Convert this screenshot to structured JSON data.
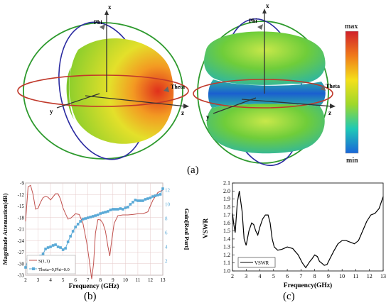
{
  "panel_labels": {
    "a": "(a)",
    "b": "(b)",
    "c": "(c)"
  },
  "pattern_axes": {
    "x": "x",
    "y": "y",
    "z": "z",
    "phi": "Phi",
    "theta": "Theta"
  },
  "colorbar": {
    "max": "max",
    "min": "min",
    "gradient": [
      "#d0202a",
      "#f07a1a",
      "#f4e01a",
      "#9ed82a",
      "#1ec9b6",
      "#1a66d8"
    ]
  },
  "chart_data": [
    {
      "type": "line",
      "xlabel": "Frequency (GHz)",
      "ylabel": "Magnitude Attenuation(dB)",
      "y2label": "Gain[Real Part]",
      "xlim": [
        2,
        13
      ],
      "ylim": [
        -33,
        -9
      ],
      "y2lim": [
        0,
        13
      ],
      "xticks": [
        2,
        3,
        4,
        5,
        6,
        7,
        8,
        9,
        10,
        11,
        12,
        13
      ],
      "yticks": [
        -9,
        -12,
        -15,
        -18,
        -21,
        -24,
        -27,
        -30,
        -33
      ],
      "y2ticks": [
        2,
        4,
        6,
        8,
        10,
        12
      ],
      "series": [
        {
          "name": "S(1,1)",
          "color": "#c0504d",
          "axis": "left",
          "x": [
            2,
            2.2,
            2.4,
            2.6,
            2.8,
            3.0,
            3.2,
            3.4,
            3.6,
            3.8,
            4.0,
            4.2,
            4.4,
            4.6,
            4.8,
            5.0,
            5.2,
            5.4,
            5.6,
            5.8,
            6.0,
            6.3,
            6.6,
            6.9,
            7.1,
            7.3,
            7.45,
            7.6,
            7.8,
            8.0,
            8.2,
            8.4,
            8.6,
            8.75,
            8.9,
            9.1,
            9.4,
            9.8,
            10.2,
            10.6,
            11.0,
            11.4,
            11.8,
            12.2,
            12.6,
            13.0
          ],
          "y": [
            -19,
            -10,
            -9.6,
            -12,
            -15.8,
            -15.6,
            -14,
            -12.8,
            -12.5,
            -12.7,
            -13.4,
            -12.6,
            -11.8,
            -11.8,
            -13.2,
            -15.5,
            -17,
            -18.4,
            -18.2,
            -17.6,
            -17.0,
            -17.2,
            -19.5,
            -24.5,
            -29,
            -34,
            -30,
            -22,
            -18.5,
            -18.6,
            -19.5,
            -21.5,
            -25.5,
            -28,
            -24,
            -19.5,
            -17.5,
            -17.3,
            -17.3,
            -17.2,
            -17.0,
            -17.0,
            -16.5,
            -13.5,
            -11.5,
            -10.8
          ]
        },
        {
          "name": "Theta=0,Phi=0.0",
          "color": "#5aa9d6",
          "axis": "right",
          "x": [
            2,
            2.2,
            2.4,
            2.6,
            2.8,
            3.0,
            3.2,
            3.4,
            3.6,
            3.8,
            4.0,
            4.2,
            4.4,
            4.6,
            4.8,
            5.0,
            5.2,
            5.4,
            5.6,
            5.8,
            6.0,
            6.2,
            6.4,
            6.6,
            6.8,
            7.0,
            7.2,
            7.4,
            7.6,
            7.8,
            8.0,
            8.2,
            8.4,
            8.6,
            8.8,
            9.0,
            9.2,
            9.4,
            9.6,
            9.8,
            10.0,
            10.2,
            10.4,
            10.6,
            10.8,
            11.0,
            11.2,
            11.4,
            11.6,
            11.8,
            12.0,
            12.2,
            12.4,
            12.6,
            12.8,
            13.0
          ],
          "y": [
            1.1,
            2.2,
            2.4,
            2.6,
            2.5,
            2.6,
            2.7,
            3.0,
            3.7,
            3.9,
            4.0,
            4.2,
            4.3,
            4.0,
            3.9,
            3.6,
            3.8,
            4.7,
            5.5,
            6.2,
            6.8,
            7.2,
            7.6,
            7.9,
            8.0,
            8.1,
            8.2,
            8.3,
            8.4,
            8.5,
            8.7,
            8.8,
            8.9,
            9.0,
            9.2,
            9.3,
            9.3,
            9.3,
            9.4,
            9.3,
            9.5,
            9.6,
            10.0,
            10.3,
            10.6,
            10.5,
            10.5,
            10.5,
            10.7,
            10.8,
            10.9,
            11.1,
            11.2,
            11.3,
            11.4,
            12.2
          ]
        }
      ]
    },
    {
      "type": "line",
      "xlabel": "Frequency(GHz)",
      "ylabel": "VSWR",
      "xlim": [
        2,
        13
      ],
      "ylim": [
        1.0,
        2.1
      ],
      "xticks": [
        2,
        3,
        4,
        5,
        6,
        7,
        8,
        9,
        10,
        11,
        12,
        13
      ],
      "yticks": [
        1.0,
        1.1,
        1.2,
        1.3,
        1.4,
        1.5,
        1.6,
        1.7,
        1.8,
        1.9,
        2.0,
        2.1
      ],
      "series": [
        {
          "name": "VSWR",
          "color": "#000000",
          "x": [
            2.0,
            2.1,
            2.2,
            2.35,
            2.5,
            2.7,
            2.85,
            3.0,
            3.2,
            3.4,
            3.55,
            3.7,
            3.85,
            4.0,
            4.2,
            4.4,
            4.6,
            4.75,
            4.9,
            5.05,
            5.3,
            5.6,
            6.0,
            6.4,
            6.8,
            7.1,
            7.35,
            7.5,
            7.65,
            7.8,
            8.0,
            8.2,
            8.35,
            8.5,
            8.7,
            8.9,
            9.1,
            9.4,
            9.7,
            10.0,
            10.3,
            10.6,
            10.9,
            11.2,
            11.5,
            11.8,
            12.1,
            12.4,
            12.7,
            13.0
          ],
          "y": [
            1.72,
            1.58,
            1.48,
            1.85,
            2.0,
            1.75,
            1.4,
            1.32,
            1.5,
            1.6,
            1.58,
            1.5,
            1.45,
            1.55,
            1.65,
            1.7,
            1.7,
            1.6,
            1.4,
            1.3,
            1.26,
            1.27,
            1.3,
            1.28,
            1.2,
            1.1,
            1.04,
            1.08,
            1.12,
            1.15,
            1.2,
            1.18,
            1.12,
            1.1,
            1.07,
            1.08,
            1.15,
            1.25,
            1.34,
            1.38,
            1.38,
            1.36,
            1.34,
            1.38,
            1.5,
            1.62,
            1.7,
            1.72,
            1.78,
            1.93
          ]
        }
      ]
    }
  ]
}
